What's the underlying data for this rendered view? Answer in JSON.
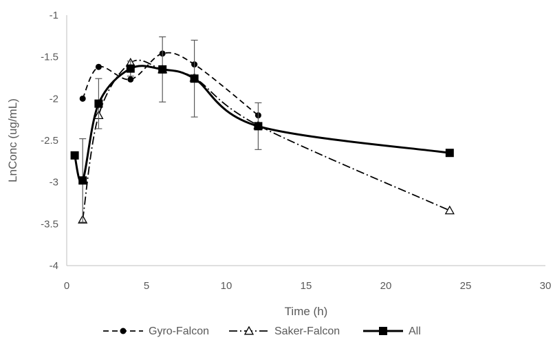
{
  "chart_data": {
    "type": "line",
    "xlabel": "Time (h)",
    "ylabel": "LnConc (ug/mL)",
    "xlim": [
      0,
      30
    ],
    "ylim": [
      -4,
      -1
    ],
    "x_ticks": [
      0,
      5,
      10,
      15,
      20,
      25,
      30
    ],
    "y_ticks": [
      -1,
      -1.5,
      -2,
      -2.5,
      -3,
      -3.5,
      -4
    ],
    "x_tick_labels": [
      "0",
      "5",
      "10",
      "15",
      "20",
      "25",
      "30"
    ],
    "y_tick_labels": [
      "-1",
      "-1.5",
      "-2",
      "-2.5",
      "-3",
      "-3.5",
      "-4"
    ],
    "grid": false,
    "legend_position": "bottom",
    "series": [
      {
        "name": "Gyro-Falcon",
        "line_style": "dashed",
        "marker": "circle",
        "color": "#000000",
        "x": [
          1,
          2,
          4,
          6,
          8,
          12
        ],
        "y": [
          -2.0,
          -1.62,
          -1.77,
          -1.46,
          -1.59,
          -2.2
        ],
        "error": [
          null,
          null,
          null,
          null,
          null,
          null
        ]
      },
      {
        "name": "Saker-Falcon",
        "line_style": "dash-dot",
        "marker": "triangle-open",
        "color": "#000000",
        "x": [
          1,
          2,
          4,
          6,
          8,
          12,
          24
        ],
        "y": [
          -3.45,
          -2.2,
          -1.57,
          -1.65,
          -1.75,
          -2.32,
          -3.34
        ],
        "error": [
          null,
          null,
          null,
          null,
          null,
          null,
          null
        ]
      },
      {
        "name": "All",
        "line_style": "solid",
        "marker": "square",
        "color": "#000000",
        "x": [
          0.5,
          1,
          2,
          4,
          6,
          8,
          12,
          24
        ],
        "y": [
          -2.68,
          -2.98,
          -2.06,
          -1.64,
          -1.65,
          -1.76,
          -2.33,
          -2.65
        ],
        "error": [
          null,
          0.5,
          0.3,
          0.09,
          0.39,
          0.46,
          0.28,
          null
        ]
      }
    ]
  }
}
